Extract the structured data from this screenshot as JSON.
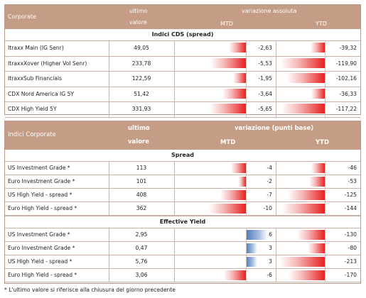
{
  "table1": {
    "header": {
      "label": "Corporate",
      "ultimo": "ultimo",
      "valore": "valore",
      "variazione": "variazione assoluta",
      "mtd": "MTD",
      "ytd": "YTD"
    },
    "section": "Indici CDS (spread)",
    "rows": [
      {
        "name": "Itraxx Main (IG Senr)",
        "value": "49,05",
        "mtd": "-2,63",
        "ytd": "-39,32"
      },
      {
        "name": "ItraxxXover (Higher Vol Senr)",
        "value": "233,78",
        "mtd": "-5,53",
        "ytd": "-119,90"
      },
      {
        "name": "ItraxxSub Financials",
        "value": "122,59",
        "mtd": "-1,95",
        "ytd": "-102,16"
      },
      {
        "name": "CDX Nord America IG 5Y",
        "value": "51,42",
        "mtd": "-3,64",
        "ytd": "-36,33"
      },
      {
        "name": "CDX High Yield 5Y",
        "value": "331,93",
        "mtd": "-5,65",
        "ytd": "-117,22"
      }
    ]
  },
  "table2": {
    "header": {
      "label": "Indici Corporate",
      "ultimo": "ultimo",
      "valore": "valore",
      "variazione": "variazione (punti base)",
      "mtd": "MTD",
      "ytd": "YTD"
    },
    "section_spread": "Spread",
    "spread_rows": [
      {
        "name": "US Investment Grade *",
        "value": "113",
        "mtd": "-4",
        "ytd": "-46"
      },
      {
        "name": "Euro Investment Grade *",
        "value": "101",
        "mtd": "-2",
        "ytd": "-53"
      },
      {
        "name": "US High Yield - spread *",
        "value": "408",
        "mtd": "-7",
        "ytd": "-125"
      },
      {
        "name": "Euro High Yield - spread *",
        "value": "362",
        "mtd": "-10",
        "ytd": "-144"
      }
    ],
    "section_yield": "Effective Yield",
    "yield_rows": [
      {
        "name": "US Investment Grade *",
        "value": "2,95",
        "mtd": "6",
        "ytd": "-130"
      },
      {
        "name": "Euro Investment Grade *",
        "value": "0,47",
        "mtd": "3",
        "ytd": "-80"
      },
      {
        "name": "US High Yield - spread *",
        "value": "5,76",
        "mtd": "3",
        "ytd": "-213"
      },
      {
        "name": "Euro High Yield - spread *",
        "value": "3,06",
        "mtd": "-6",
        "ytd": "-170"
      }
    ]
  },
  "footnote": "* L'ultimo valore si riferisce alla chiusura del giorno precedente",
  "colors": {
    "negative": "#e8201f",
    "positive": "#4d79b9",
    "header": "#c59c86"
  }
}
